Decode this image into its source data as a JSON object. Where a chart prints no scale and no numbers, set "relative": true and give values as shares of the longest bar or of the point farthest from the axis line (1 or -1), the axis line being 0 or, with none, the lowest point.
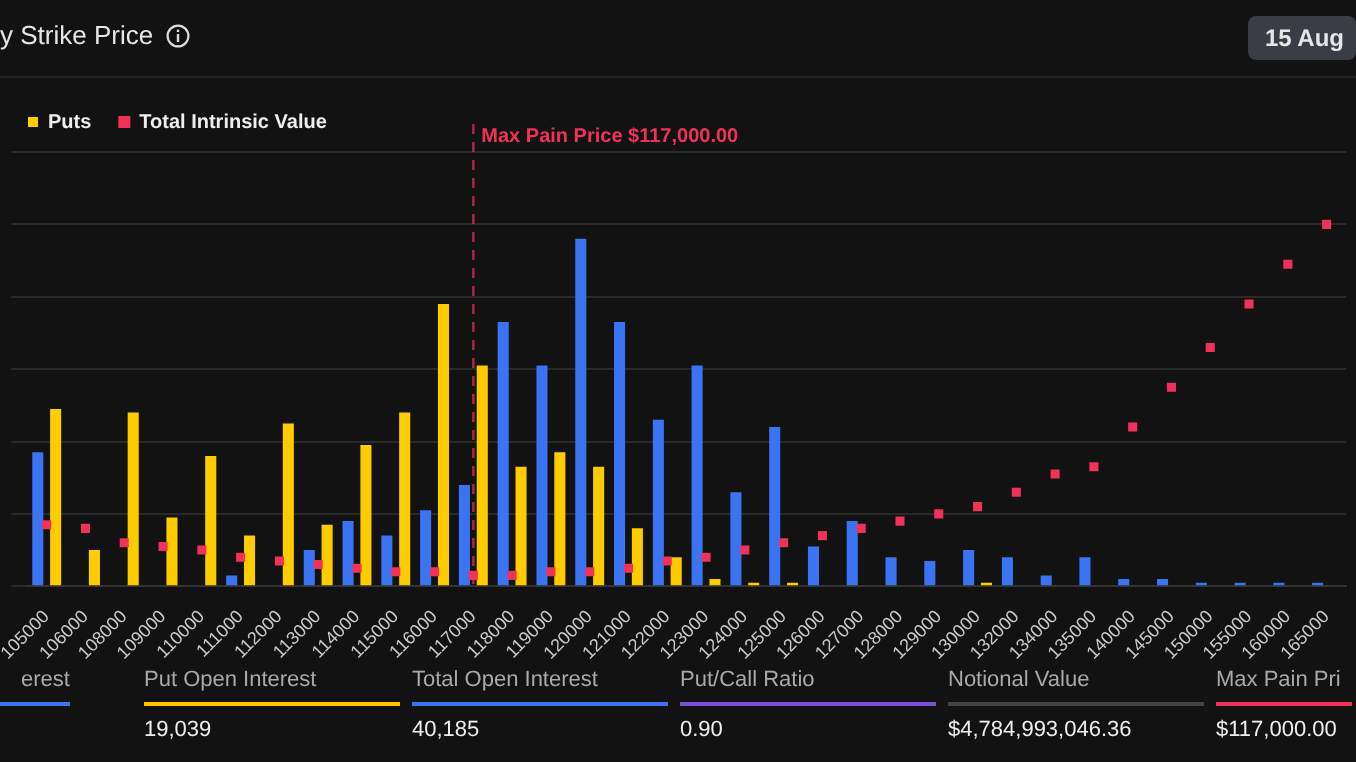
{
  "chart_data": {
    "type": "bar",
    "title": "y Strike Price",
    "relative": true,
    "grid": "y",
    "legend": "top left",
    "marker": "square",
    "categories": [
      "105000",
      "106000",
      "108000",
      "109000",
      "110000",
      "111000",
      "112000",
      "113000",
      "114000",
      "115000",
      "116000",
      "117000",
      "118000",
      "119000",
      "120000",
      "121000",
      "122000",
      "123000",
      "124000",
      "125000",
      "126000",
      "127000",
      "128000",
      "129000",
      "130000",
      "132000",
      "134000",
      "135000",
      "140000",
      "145000",
      "150000",
      "155000",
      "160000",
      "165000"
    ],
    "series": [
      {
        "color": "#3b74f2",
        "values": [
          0.37,
          null,
          null,
          null,
          null,
          0.03,
          null,
          0.1,
          0.18,
          0.14,
          0.21,
          0.28,
          0.73,
          0.61,
          0.96,
          0.73,
          0.46,
          0.61,
          0.26,
          0.44,
          0.11,
          0.18,
          0.08,
          0.07,
          0.1,
          0.08,
          0.03,
          0.08,
          0.02,
          0.02,
          0.01,
          0.01,
          0.01,
          0.01
        ]
      },
      {
        "name": "Puts",
        "color": "#ffcc00",
        "values": [
          0.49,
          0.1,
          0.48,
          0.19,
          0.36,
          0.14,
          0.45,
          0.17,
          0.39,
          0.48,
          0.78,
          0.61,
          0.33,
          0.37,
          0.33,
          0.16,
          0.08,
          0.02,
          0.01,
          0.01,
          null,
          null,
          null,
          null,
          0.01,
          null,
          null,
          null,
          null,
          null,
          null,
          null,
          null,
          null
        ]
      },
      {
        "name": "Total Intrinsic Value",
        "type": "scatter",
        "color": "#f0325a",
        "values": [
          0.17,
          0.16,
          0.12,
          0.11,
          0.1,
          0.08,
          0.07,
          0.06,
          0.05,
          0.04,
          0.04,
          0.03,
          0.03,
          0.04,
          0.04,
          0.05,
          0.07,
          0.08,
          0.1,
          0.12,
          0.14,
          0.16,
          0.18,
          0.2,
          0.22,
          0.26,
          0.31,
          0.33,
          0.44,
          0.55,
          0.66,
          0.78,
          0.89,
          1
        ]
      }
    ],
    "ref_lines": [
      {
        "axis": "x",
        "value": "117000",
        "label": "Max Pain Price $117,000.00",
        "color": "#f0325a",
        "line_style": "dashed"
      }
    ],
    "annotations": [
      "15 Aug",
      "erest",
      "Put Open Interest",
      "19,039",
      "Total Open Interest",
      "40,185",
      "Put/Call Ratio",
      "0.90",
      "Notional Value",
      "$4,784,993,046.36",
      "Max Pain Pri",
      "$117,000.00"
    ]
  }
}
